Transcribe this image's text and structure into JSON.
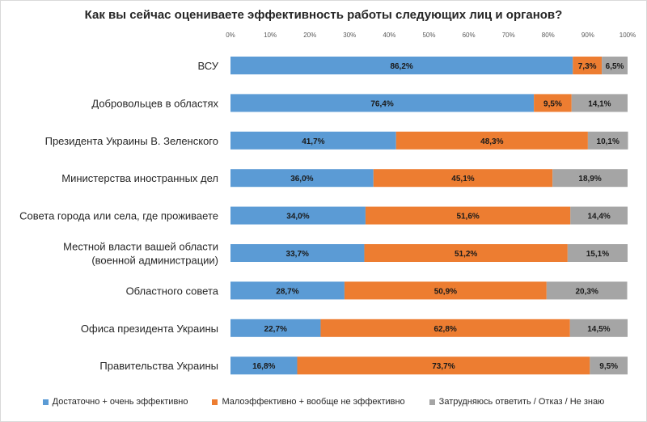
{
  "chart_data": {
    "type": "bar",
    "orientation": "horizontal",
    "stacked": true,
    "title": "Как вы сейчас оцениваете эффективность работы следующих лиц и органов?",
    "categories": [
      [
        "ВСУ"
      ],
      [
        "Добровольцев в областях"
      ],
      [
        "Президента Украины В. Зеленского"
      ],
      [
        "Министерства иностранных дел"
      ],
      [
        "Совета города или села, где проживаете"
      ],
      [
        "Местной власти вашей области",
        "(военной администрации)"
      ],
      [
        "Областного совета"
      ],
      [
        "Офиса президента Украины"
      ],
      [
        "Правительства Украины"
      ]
    ],
    "series": [
      {
        "name": "Достаточно + очень эффективно",
        "color": "#5b9bd5",
        "values": [
          86.2,
          76.4,
          41.7,
          36.0,
          34.0,
          33.7,
          28.7,
          22.7,
          16.8
        ],
        "labels": [
          "86,2%",
          "76,4%",
          "41,7%",
          "36,0%",
          "34,0%",
          "33,7%",
          "28,7%",
          "22,7%",
          "16,8%"
        ]
      },
      {
        "name": "Малоэффективно + вообще не эффективно",
        "color": "#ed7d31",
        "values": [
          7.3,
          9.5,
          48.3,
          45.1,
          51.6,
          51.2,
          50.9,
          62.8,
          73.7
        ],
        "labels": [
          "7,3%",
          "9,5%",
          "48,3%",
          "45,1%",
          "51,6%",
          "51,2%",
          "50,9%",
          "62,8%",
          "73,7%"
        ]
      },
      {
        "name": "Затрудняюсь ответить / Отказ / Не знаю",
        "color": "#a5a5a5",
        "values": [
          6.5,
          14.1,
          10.1,
          18.9,
          14.4,
          15.1,
          20.3,
          14.5,
          9.5
        ],
        "labels": [
          "6,5%",
          "14,1%",
          "10,1%",
          "18,9%",
          "14,4%",
          "15,1%",
          "20,3%",
          "14,5%",
          "9,5%"
        ]
      }
    ],
    "xlim": [
      0,
      100
    ],
    "xticks": [
      "0%",
      "10%",
      "20%",
      "30%",
      "40%",
      "50%",
      "60%",
      "70%",
      "80%",
      "90%",
      "100%"
    ],
    "legend_position": "bottom",
    "grid": false
  }
}
